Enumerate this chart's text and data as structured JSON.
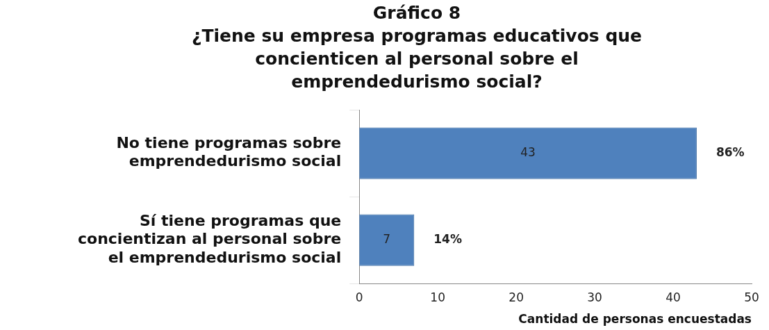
{
  "chart_data": {
    "type": "bar",
    "orientation": "horizontal",
    "title": "Gráfico 8",
    "subtitle": "¿Tiene su empresa programas educativos que concienticen al personal sobre el emprendedurismo social?",
    "categories": [
      "No tiene programas sobre emprendedurismo social",
      "Sí tiene programas que concientizan al personal sobre el emprendedurismo social"
    ],
    "values": [
      43,
      7
    ],
    "color": "#4f81bd",
    "data_labels": true,
    "xlim": [
      0,
      50
    ],
    "xticks": [
      0,
      10,
      20,
      30,
      40,
      50
    ],
    "xlabel": "Cantidad de personas encuestadas",
    "grid": false,
    "legend": false,
    "annotations": [
      {
        "text": "86%",
        "x": 43,
        "y": "No tiene programas sobre emprendedurismo social"
      },
      {
        "text": "14%",
        "x": 7,
        "y": "Sí tiene programas que concientizan al personal sobre el emprendedurismo social"
      }
    ]
  }
}
